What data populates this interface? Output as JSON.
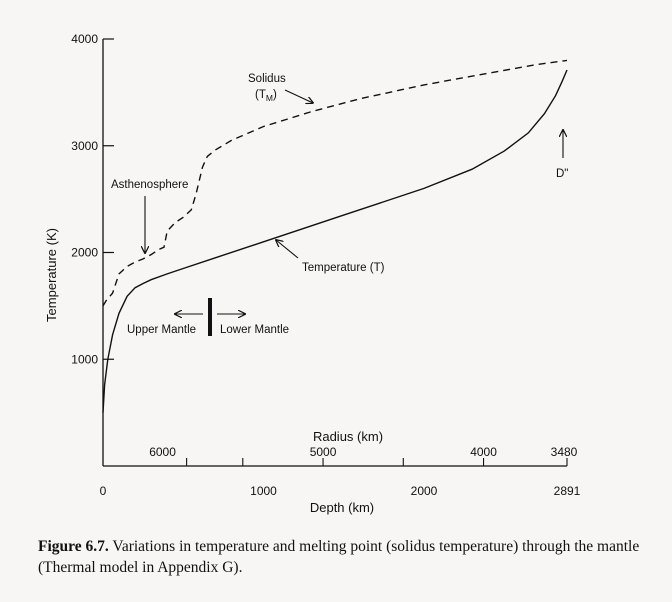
{
  "chart_data": {
    "type": "line",
    "title": "",
    "ylabel": "Temperature (K)",
    "xlabel": "Depth (km)",
    "x2label": "Radius (km)",
    "xlim": [
      0,
      2891
    ],
    "ylim": [
      0,
      4000
    ],
    "y_ticks": [
      1000,
      2000,
      3000,
      4000
    ],
    "x_ticks": [
      0,
      1000,
      2000
    ],
    "x_end_label": "2891",
    "radius_ticks": [
      {
        "depth": 371,
        "label": "6000"
      },
      {
        "depth": 1371,
        "label": "5000"
      },
      {
        "depth": 2371,
        "label": "4000"
      },
      {
        "depth": 2891,
        "label": "3480"
      }
    ],
    "radius_minor_ticks": [
      521,
      871,
      1371,
      1871,
      2371
    ],
    "series": [
      {
        "name": "Temperature (T)",
        "style": "solid",
        "x": [
          0,
          10,
          30,
          60,
          100,
          150,
          200,
          250,
          300,
          400,
          500,
          700,
          1000,
          1500,
          2000,
          2300,
          2500,
          2650,
          2750,
          2820,
          2860,
          2891
        ],
        "y": [
          500,
          760,
          1000,
          1230,
          1430,
          1590,
          1670,
          1710,
          1745,
          1800,
          1850,
          1950,
          2100,
          2350,
          2600,
          2780,
          2950,
          3120,
          3300,
          3470,
          3600,
          3710
        ]
      },
      {
        "name": "Solidus (T_M)",
        "style": "dashed",
        "x": [
          0,
          20,
          60,
          100,
          150,
          200,
          250,
          300,
          350,
          380,
          400,
          450,
          500,
          550,
          580,
          620,
          650,
          700,
          800,
          1000,
          1300,
          1600,
          2000,
          2400,
          2700,
          2891
        ],
        "y": [
          1500,
          1550,
          1620,
          1800,
          1870,
          1910,
          1940,
          1980,
          2030,
          2050,
          2200,
          2280,
          2330,
          2400,
          2550,
          2800,
          2900,
          2960,
          3050,
          3180,
          3320,
          3440,
          3570,
          3680,
          3760,
          3800
        ]
      }
    ],
    "annotations": {
      "solidus_line1": "Solidus",
      "solidus_sym": "(T",
      "solidus_sub": "M",
      "solidus_close": ")",
      "asthenosphere": "Asthenosphere",
      "temperature": "Temperature  (T)",
      "upper_mantle": "Upper Mantle",
      "lower_mantle": "Lower Mantle",
      "d_double_prime": "D\""
    },
    "grid": false
  },
  "caption": {
    "label": "Figure 6.7.",
    "text": "  Variations in temperature and melting point (solidus temperature) through the mantle (Thermal model in Appendix G)."
  }
}
